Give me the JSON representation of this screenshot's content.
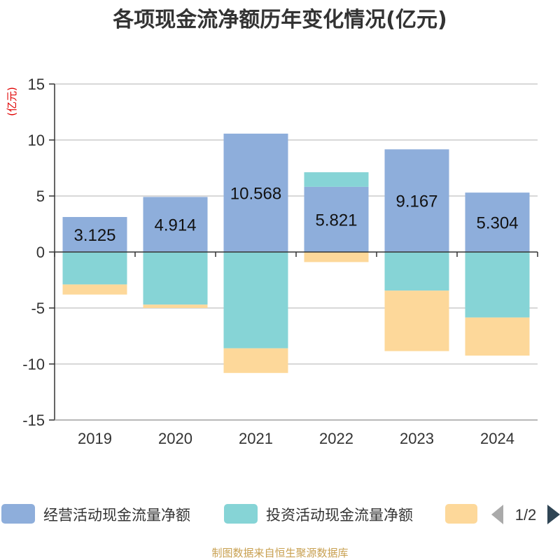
{
  "chart_data": {
    "type": "bar",
    "stacked": true,
    "title": "各项现金流净额历年变化情况(亿元)",
    "ylabel": "(亿元)",
    "xlabel": "",
    "ylim": [
      -15,
      15
    ],
    "yticks": [
      15,
      10,
      5,
      0,
      -5,
      -10,
      -15
    ],
    "categories": [
      "2019",
      "2020",
      "2021",
      "2022",
      "2023",
      "2024"
    ],
    "series": [
      {
        "name": "经营活动现金流量净额",
        "color": "#8eaedb",
        "values": [
          3.125,
          4.914,
          10.568,
          5.821,
          9.167,
          5.304
        ],
        "data_labels": [
          "3.125",
          "4.914",
          "10.568",
          "5.821",
          "9.167",
          "5.304"
        ]
      },
      {
        "name": "投资活动现金流量净额",
        "color": "#86d4d6",
        "values": [
          -2.9,
          -4.7,
          -8.6,
          1.3,
          -3.45,
          -5.85
        ]
      },
      {
        "name": "",
        "color": "#fdd89a",
        "values": [
          -0.9,
          -0.3,
          -2.2,
          -0.9,
          -5.4,
          -3.4
        ]
      }
    ],
    "legend": {
      "position": "bottom",
      "page": "1/2"
    },
    "source": "制图数据来自恒生聚源数据库"
  }
}
